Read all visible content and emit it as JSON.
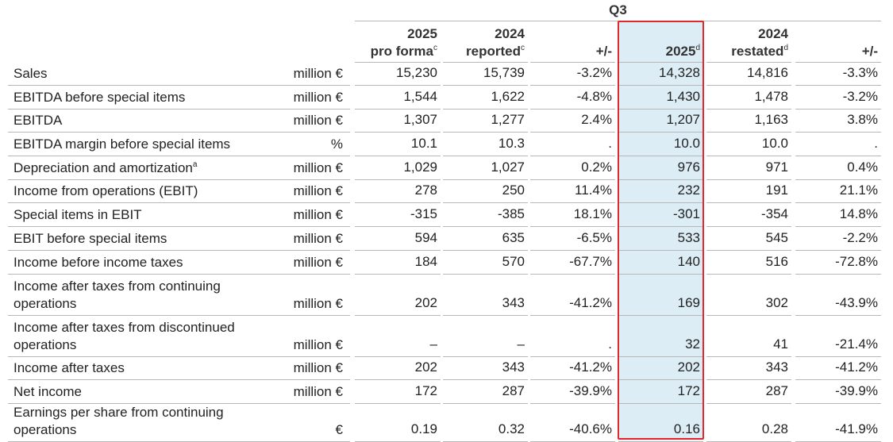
{
  "header": {
    "period": "Q3",
    "columns": [
      {
        "year": "2025",
        "label": "pro forma",
        "note": "c"
      },
      {
        "year": "2024",
        "label": "reported",
        "note": "c"
      },
      {
        "label": "+/-"
      },
      {
        "year": "2025",
        "note": "d"
      },
      {
        "year": "2024",
        "label": "restated",
        "note": "d"
      },
      {
        "label": "+/-"
      }
    ]
  },
  "table": {
    "rows": [
      {
        "label": "Sales",
        "unit": "million €",
        "cells": [
          "15,230",
          "15,739",
          "-3.2%",
          "14,328",
          "14,816",
          "-3.3%"
        ]
      },
      {
        "label": "EBITDA before special items",
        "unit": "million €",
        "cells": [
          "1,544",
          "1,622",
          "-4.8%",
          "1,430",
          "1,478",
          "-3.2%"
        ]
      },
      {
        "label": "EBITDA",
        "unit": "million €",
        "cells": [
          "1,307",
          "1,277",
          "2.4%",
          "1,207",
          "1,163",
          "3.8%"
        ]
      },
      {
        "label": "EBITDA margin before special items",
        "unit": "%",
        "cells": [
          "10.1",
          "10.3",
          ".",
          "10.0",
          "10.0",
          "."
        ]
      },
      {
        "label": "Depreciation and amortization",
        "label_note": "a",
        "unit": "million €",
        "cells": [
          "1,029",
          "1,027",
          "0.2%",
          "976",
          "971",
          "0.4%"
        ]
      },
      {
        "label": "Income from operations (EBIT)",
        "unit": "million €",
        "cells": [
          "278",
          "250",
          "11.4%",
          "232",
          "191",
          "21.1%"
        ]
      },
      {
        "label": "Special items in EBIT",
        "unit": "million €",
        "cells": [
          "-315",
          "-385",
          "18.1%",
          "-301",
          "-354",
          "14.8%"
        ]
      },
      {
        "label": "EBIT before special items",
        "unit": "million €",
        "cells": [
          "594",
          "635",
          "-6.5%",
          "533",
          "545",
          "-2.2%"
        ]
      },
      {
        "label": "Income before income taxes",
        "unit": "million €",
        "cells": [
          "184",
          "570",
          "-67.7%",
          "140",
          "516",
          "-72.8%"
        ]
      },
      {
        "label": "Income after taxes from continuing operations",
        "unit": "million €",
        "cells": [
          "202",
          "343",
          "-41.2%",
          "169",
          "302",
          "-43.9%"
        ]
      },
      {
        "label": "Income after taxes from discontinued operations",
        "unit": "million €",
        "cells": [
          "–",
          "–",
          ".",
          "32",
          "41",
          "-21.4%"
        ]
      },
      {
        "label": "Income after taxes",
        "unit": "million €",
        "cells": [
          "202",
          "343",
          "-41.2%",
          "202",
          "343",
          "-41.2%"
        ]
      },
      {
        "label": "Net income",
        "unit": "million €",
        "cells": [
          "172",
          "287",
          "-39.9%",
          "172",
          "287",
          "-39.9%"
        ]
      },
      {
        "label": "Earnings per share from continuing operations",
        "unit": "€",
        "cells": [
          "0.19",
          "0.32",
          "-40.6%",
          "0.16",
          "0.28",
          "-41.9%"
        ]
      }
    ]
  }
}
